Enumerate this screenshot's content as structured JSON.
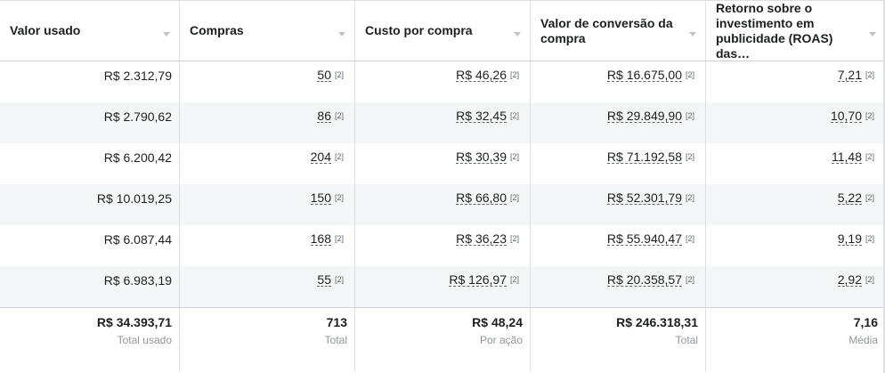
{
  "table": {
    "columns": [
      {
        "label": "Valor usado"
      },
      {
        "label": "Compras"
      },
      {
        "label": "Custo por compra"
      },
      {
        "label": "Valor de conversão da compra"
      },
      {
        "label": "Retorno sobre o investimento em publicidade (ROAS) das…"
      }
    ],
    "rows": [
      {
        "spend": "R$ 2.312,79",
        "purchases": "50",
        "cost_per_purchase": "R$ 46,26",
        "conversion_value": "R$ 16.675,00",
        "roas": "7,21"
      },
      {
        "spend": "R$ 2.790,62",
        "purchases": "86",
        "cost_per_purchase": "R$ 32,45",
        "conversion_value": "R$ 29.849,90",
        "roas": "10,70"
      },
      {
        "spend": "R$ 6.200,42",
        "purchases": "204",
        "cost_per_purchase": "R$ 30,39",
        "conversion_value": "R$ 71.192,58",
        "roas": "11,48"
      },
      {
        "spend": "R$ 10.019,25",
        "purchases": "150",
        "cost_per_purchase": "R$ 66,80",
        "conversion_value": "R$ 52.301,79",
        "roas": "5,22"
      },
      {
        "spend": "R$ 6.087,44",
        "purchases": "168",
        "cost_per_purchase": "R$ 36,23",
        "conversion_value": "R$ 55.940,47",
        "roas": "9,19"
      },
      {
        "spend": "R$ 6.983,19",
        "purchases": "55",
        "cost_per_purchase": "R$ 126,97",
        "conversion_value": "R$ 20.358,57",
        "roas": "2,92"
      }
    ],
    "footnote_marker": "[2]",
    "totals": [
      {
        "value": "R$ 34.393,71",
        "label": "Total usado"
      },
      {
        "value": "713",
        "label": "Total"
      },
      {
        "value": "R$ 48,24",
        "label": "Por ação"
      },
      {
        "value": "R$ 246.318,31",
        "label": "Total"
      },
      {
        "value": "7,16",
        "label": "Média"
      }
    ]
  }
}
